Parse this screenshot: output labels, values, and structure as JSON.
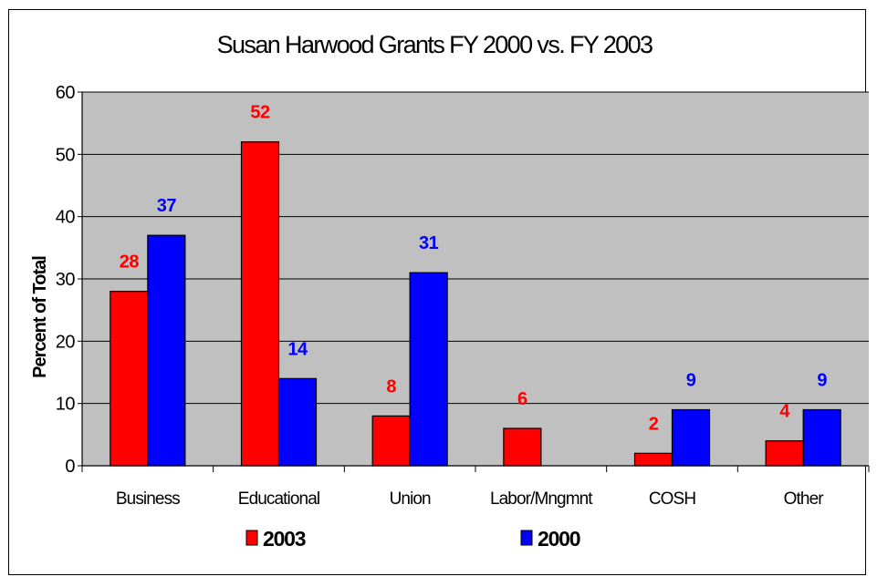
{
  "chart_data": {
    "type": "bar",
    "title": "Susan Harwood Grants FY 2000 vs. FY 2003",
    "xlabel": "",
    "ylabel": "Percent of Total",
    "ylim": [
      0,
      60
    ],
    "yticks": [
      0,
      10,
      20,
      30,
      40,
      50,
      60
    ],
    "grid": true,
    "legend_position": "bottom",
    "categories": [
      "Business",
      "Educational",
      "Union",
      "Labor/Mngmnt",
      "COSH",
      "Other"
    ],
    "series": [
      {
        "name": "2003",
        "color": "#ff0000",
        "values": [
          28,
          52,
          8,
          6,
          2,
          4
        ],
        "labels": [
          "28",
          "52",
          "8",
          "6",
          "2",
          "4"
        ]
      },
      {
        "name": "2000",
        "color": "#0000ff",
        "values": [
          37,
          14,
          31,
          null,
          9,
          9
        ],
        "labels": [
          "37",
          "14",
          "31",
          "",
          "9",
          "9"
        ]
      }
    ],
    "plot_background": "#c0c0c0"
  }
}
